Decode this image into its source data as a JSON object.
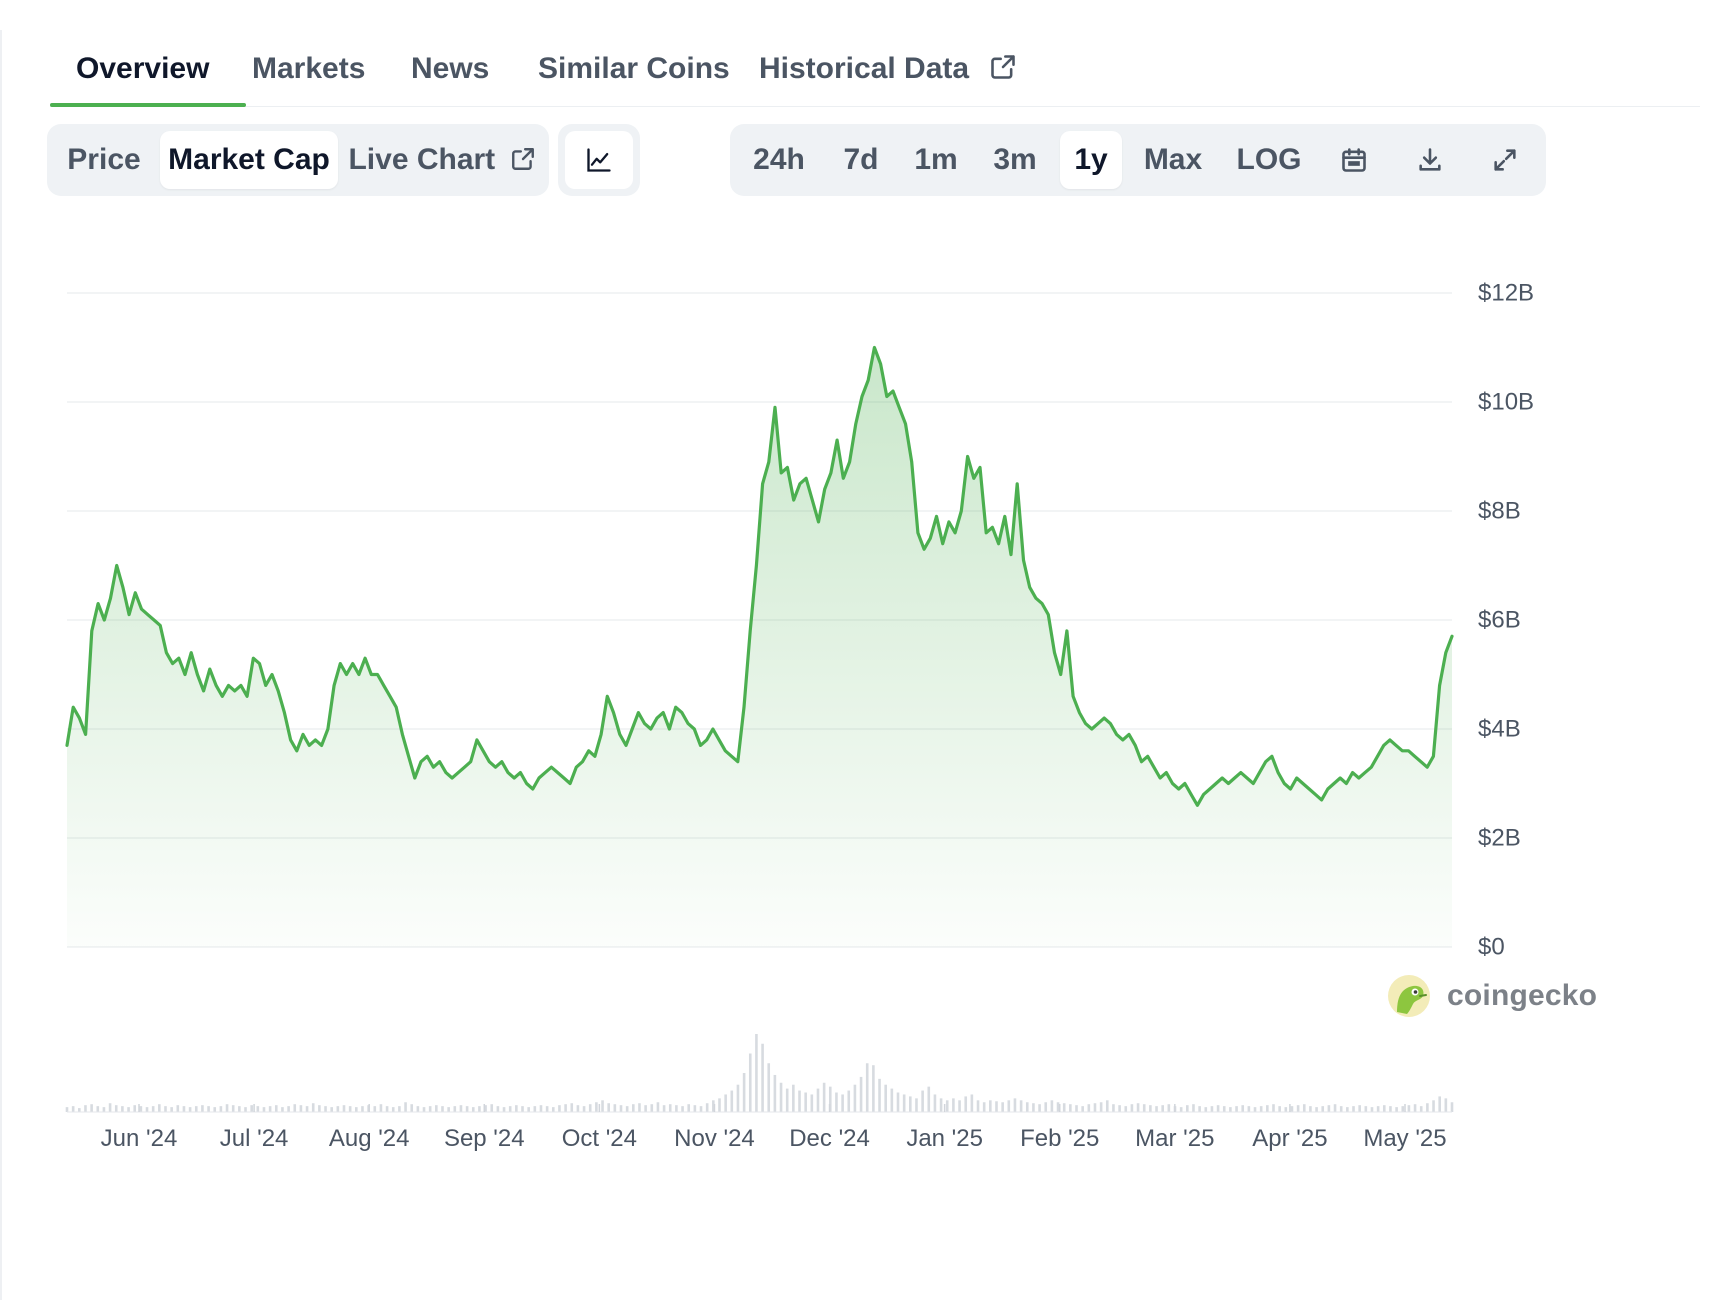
{
  "tabs": [
    {
      "label": "Overview",
      "active": true
    },
    {
      "label": "Markets",
      "active": false
    },
    {
      "label": "News",
      "active": false
    },
    {
      "label": "Similar Coins",
      "active": false
    },
    {
      "label": "Historical Data",
      "active": false,
      "external": true
    }
  ],
  "chart_types": [
    {
      "label": "Price",
      "active": false
    },
    {
      "label": "Market Cap",
      "active": true
    },
    {
      "label": "Live Chart",
      "active": false,
      "external": true
    }
  ],
  "chart_style_icon": "line-chart-icon",
  "ranges": [
    {
      "label": "24h",
      "active": false
    },
    {
      "label": "7d",
      "active": false
    },
    {
      "label": "1m",
      "active": false
    },
    {
      "label": "3m",
      "active": false
    },
    {
      "label": "1y",
      "active": true
    },
    {
      "label": "Max",
      "active": false
    },
    {
      "label": "LOG",
      "active": false
    }
  ],
  "toolbar_icons": [
    "calendar-icon",
    "download-icon",
    "fullscreen-icon"
  ],
  "watermark": {
    "text": "coingecko"
  },
  "colors": {
    "line": "#4caf50",
    "accent": "#4cb050",
    "volume": "#d7dbe0",
    "grid": "#eef0f2"
  },
  "chart_data": {
    "type": "area",
    "series": [
      {
        "values": [
          3.7,
          4.4,
          4.2,
          3.9,
          5.8,
          6.3,
          6.0,
          6.4,
          7.0,
          6.6,
          6.1,
          6.5,
          6.2,
          6.1,
          6.0,
          5.9,
          5.4,
          5.2,
          5.3,
          5.0,
          5.4,
          5.0,
          4.7,
          5.1,
          4.8,
          4.6,
          4.8,
          4.7,
          4.8,
          4.6,
          5.3,
          5.2,
          4.8,
          5.0,
          4.7,
          4.3,
          3.8,
          3.6,
          3.9,
          3.7,
          3.8,
          3.7,
          4.0,
          4.8,
          5.2,
          5.0,
          5.2,
          5.0,
          5.3,
          5.0,
          5.0,
          4.8,
          4.6,
          4.4,
          3.9,
          3.5,
          3.1,
          3.4,
          3.5,
          3.3,
          3.4,
          3.2,
          3.1,
          3.2,
          3.3,
          3.4,
          3.8,
          3.6,
          3.4,
          3.3,
          3.4,
          3.2,
          3.1,
          3.2,
          3.0,
          2.9,
          3.1,
          3.2,
          3.3,
          3.2,
          3.1,
          3.0,
          3.3,
          3.4,
          3.6,
          3.5,
          3.9,
          4.6,
          4.3,
          3.9,
          3.7,
          4.0,
          4.3,
          4.1,
          4.0,
          4.2,
          4.3,
          4.0,
          4.4,
          4.3,
          4.1,
          4.0,
          3.7,
          3.8,
          4.0,
          3.8,
          3.6,
          3.5,
          3.4,
          4.4,
          5.8,
          7.0,
          8.5,
          8.9,
          9.9,
          8.7,
          8.8,
          8.2,
          8.5,
          8.6,
          8.2,
          7.8,
          8.4,
          8.7,
          9.3,
          8.6,
          8.9,
          9.6,
          10.1,
          10.4,
          11.0,
          10.7,
          10.1,
          10.2,
          9.9,
          9.6,
          8.9,
          7.6,
          7.3,
          7.5,
          7.9,
          7.4,
          7.8,
          7.6,
          8.0,
          9.0,
          8.6,
          8.8,
          7.6,
          7.7,
          7.4,
          7.9,
          7.2,
          8.5,
          7.1,
          6.6,
          6.4,
          6.3,
          6.1,
          5.4,
          5.0,
          5.8,
          4.6,
          4.3,
          4.1,
          4.0,
          4.1,
          4.2,
          4.1,
          3.9,
          3.8,
          3.9,
          3.7,
          3.4,
          3.5,
          3.3,
          3.1,
          3.2,
          3.0,
          2.9,
          3.0,
          2.8,
          2.6,
          2.8,
          2.9,
          3.0,
          3.1,
          3.0,
          3.1,
          3.2,
          3.1,
          3.0,
          3.2,
          3.4,
          3.5,
          3.2,
          3.0,
          2.9,
          3.1,
          3.0,
          2.9,
          2.8,
          2.7,
          2.9,
          3.0,
          3.1,
          3.0,
          3.2,
          3.1,
          3.2,
          3.3,
          3.5,
          3.7,
          3.8,
          3.7,
          3.6,
          3.6,
          3.5,
          3.4,
          3.3,
          3.5,
          4.8,
          5.4,
          5.7
        ]
      }
    ],
    "volume": [
      5,
      6,
      4,
      7,
      8,
      6,
      5,
      9,
      7,
      6,
      5,
      7,
      6,
      5,
      6,
      8,
      6,
      5,
      7,
      6,
      5,
      6,
      7,
      6,
      5,
      6,
      8,
      7,
      6,
      5,
      7,
      6,
      5,
      6,
      7,
      5,
      6,
      8,
      7,
      6,
      9,
      7,
      6,
      5,
      6,
      7,
      6,
      5,
      6,
      7,
      6,
      8,
      6,
      5,
      6,
      10,
      8,
      6,
      5,
      6,
      7,
      6,
      5,
      6,
      7,
      6,
      5,
      6,
      7,
      8,
      6,
      5,
      6,
      7,
      6,
      5,
      6,
      7,
      6,
      5,
      7,
      8,
      9,
      7,
      6,
      8,
      10,
      12,
      9,
      8,
      7,
      6,
      8,
      9,
      7,
      8,
      10,
      7,
      8,
      7,
      6,
      8,
      7,
      6,
      9,
      12,
      14,
      18,
      22,
      28,
      40,
      60,
      80,
      70,
      50,
      38,
      30,
      24,
      28,
      22,
      20,
      18,
      24,
      30,
      26,
      20,
      18,
      22,
      28,
      36,
      50,
      48,
      34,
      28,
      24,
      20,
      18,
      16,
      14,
      22,
      26,
      18,
      14,
      12,
      14,
      12,
      16,
      18,
      12,
      10,
      12,
      11,
      10,
      12,
      14,
      12,
      10,
      9,
      8,
      10,
      12,
      10,
      9,
      8,
      7,
      6,
      8,
      9,
      10,
      12,
      8,
      7,
      6,
      8,
      9,
      8,
      7,
      6,
      7,
      8,
      6,
      5,
      7,
      8,
      6,
      5,
      6,
      7,
      6,
      5,
      6,
      7,
      6,
      5,
      6,
      7,
      8,
      6,
      5,
      6,
      7,
      8,
      6,
      5,
      6,
      7,
      8,
      6,
      5,
      6,
      7,
      6,
      5,
      6,
      7,
      6,
      5,
      6,
      7,
      8,
      6,
      9,
      12,
      16,
      14,
      10
    ],
    "y_ticks": [
      "$12B",
      "$10B",
      "$8B",
      "$6B",
      "$4B",
      "$2B",
      "$0"
    ],
    "y_tick_values": [
      12,
      10,
      8,
      6,
      4,
      2,
      0
    ],
    "x_ticks": [
      "Jun '24",
      "Jul '24",
      "Aug '24",
      "Sep '24",
      "Oct '24",
      "Nov '24",
      "Dec '24",
      "Jan '25",
      "Feb '25",
      "Mar '25",
      "Apr '25",
      "May '25"
    ],
    "ylim": [
      0,
      12
    ],
    "unit": "USD billions",
    "grid": true
  }
}
